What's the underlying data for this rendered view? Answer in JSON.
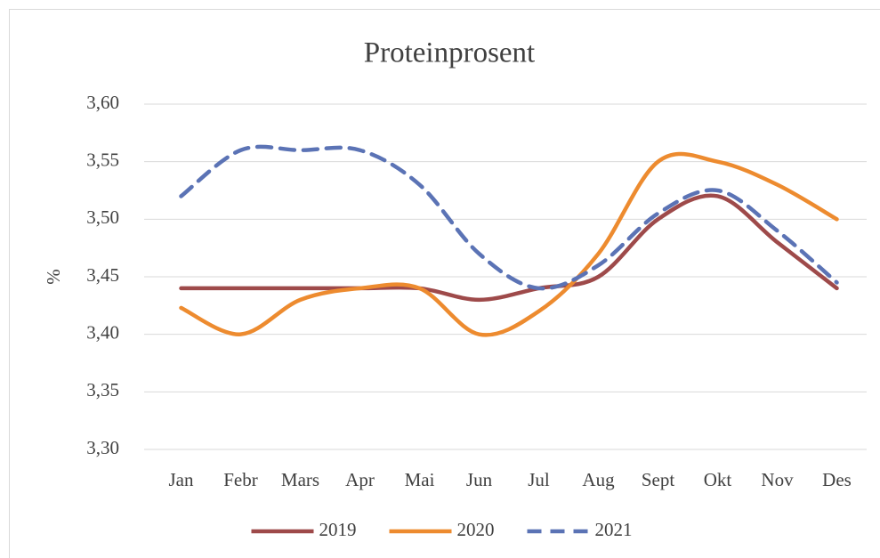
{
  "chart_data": {
    "type": "line",
    "title": "Proteinprosent",
    "y_label": "%",
    "categories": [
      "Jan",
      "Febr",
      "Mars",
      "Apr",
      "Mai",
      "Jun",
      "Jul",
      "Aug",
      "Sept",
      "Okt",
      "Nov",
      "Des"
    ],
    "series": [
      {
        "name": "2019",
        "color": "#9e4a4a",
        "values": [
          3.44,
          3.44,
          3.44,
          3.44,
          3.44,
          3.43,
          3.44,
          3.45,
          3.5,
          3.52,
          3.48,
          3.44
        ]
      },
      {
        "name": "2020",
        "color": "#ed8b2f",
        "values": [
          3.423,
          3.4,
          3.43,
          3.44,
          3.44,
          3.4,
          3.42,
          3.47,
          3.55,
          3.55,
          3.53,
          3.5
        ]
      },
      {
        "name": "2021",
        "color": "#5b73b5",
        "dashed": true,
        "values": [
          3.52,
          3.56,
          3.56,
          3.56,
          3.53,
          3.47,
          3.44,
          3.46,
          3.505,
          3.525,
          3.49,
          3.445
        ]
      }
    ],
    "ylim": [
      3.3,
      3.6
    ],
    "yticks": [
      {
        "value": 3.3,
        "label": "3,30"
      },
      {
        "value": 3.35,
        "label": "3,35"
      },
      {
        "value": 3.4,
        "label": "3,40"
      },
      {
        "value": 3.45,
        "label": "3,45"
      },
      {
        "value": 3.5,
        "label": "3,50"
      },
      {
        "value": 3.55,
        "label": "3,55"
      },
      {
        "value": 3.6,
        "label": "3,60"
      }
    ],
    "grid": true,
    "legend": "bottom"
  }
}
